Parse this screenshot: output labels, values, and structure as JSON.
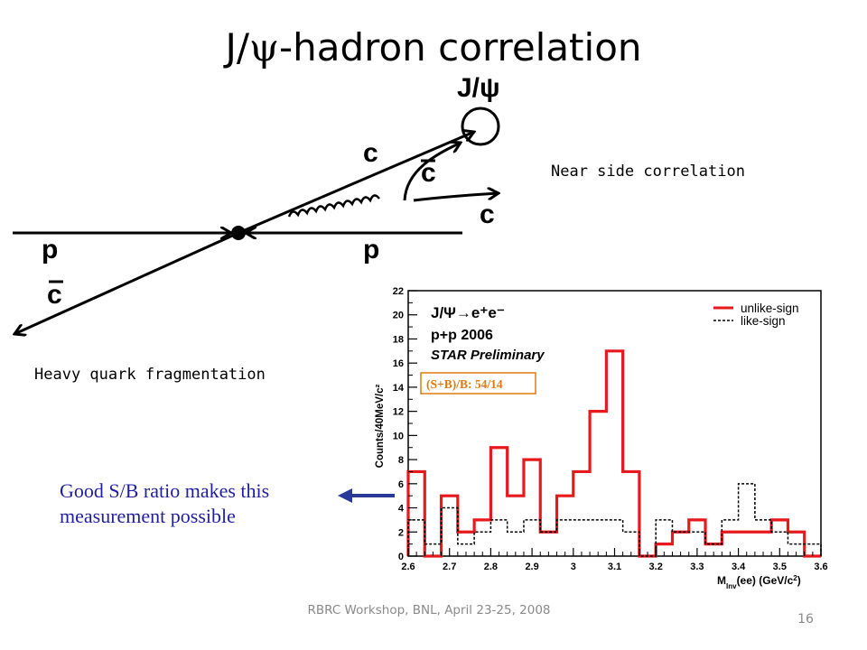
{
  "slide": {
    "title_prefix": "J/",
    "title_symbol": "ψ",
    "title_suffix": "-hadron correlation",
    "near_side_label": "Near side correlation",
    "heavy_quark_label": "Heavy quark fragmentation",
    "note_text": "Good S/B ratio makes this measurement possible",
    "footer": "RBRC Workshop, BNL, April 23-25, 2008",
    "page_number": "16"
  },
  "diagram": {
    "labels": {
      "jpsi": "J/ψ",
      "c_upper": "c",
      "c_bar_upper": "c",
      "c_right": "c",
      "p_left": "p",
      "p_right": "p",
      "c_bar_lower": "c"
    }
  },
  "chart_data": {
    "type": "histogram",
    "title_lines": [
      "J/Ψ→e⁺e⁻",
      "p+p 2006",
      "STAR Preliminary"
    ],
    "ratio_label": "(S+B)/B: 54/14",
    "xlabel": "M_Inv(ee) (GeV/c²)",
    "ylabel": "Counts/40MeV/c²",
    "xlim": [
      2.6,
      3.6
    ],
    "ylim": [
      0,
      22
    ],
    "xticks": [
      "2.6",
      "2.7",
      "2.8",
      "2.9",
      "3",
      "3.1",
      "3.2",
      "3.3",
      "3.4",
      "3.5",
      "3.6"
    ],
    "yticks": [
      "0",
      "2",
      "4",
      "6",
      "8",
      "10",
      "12",
      "14",
      "16",
      "18",
      "20",
      "22"
    ],
    "legend_position": "top-right",
    "bin_edges": [
      2.6,
      2.64,
      2.68,
      2.72,
      2.76,
      2.8,
      2.84,
      2.88,
      2.92,
      2.96,
      3.0,
      3.04,
      3.08,
      3.12,
      3.16,
      3.2,
      3.24,
      3.28,
      3.32,
      3.36,
      3.4,
      3.44,
      3.48,
      3.52,
      3.56,
      3.6
    ],
    "series": [
      {
        "name": "unlike-sign",
        "color": "#e8191c",
        "style": "solid",
        "values": [
          7,
          0,
          5,
          2,
          3,
          9,
          5,
          8,
          2,
          5,
          7,
          12,
          17,
          7,
          0,
          1,
          2,
          3,
          1,
          2,
          2,
          2,
          3,
          2,
          0
        ]
      },
      {
        "name": "like-sign",
        "color": "#000000",
        "style": "dashed",
        "values": [
          3,
          1,
          4,
          1,
          2,
          3,
          2,
          3,
          2,
          3,
          3,
          3,
          3,
          2,
          0,
          3,
          2,
          2,
          1,
          3,
          6,
          3,
          2,
          1,
          1
        ]
      }
    ]
  }
}
